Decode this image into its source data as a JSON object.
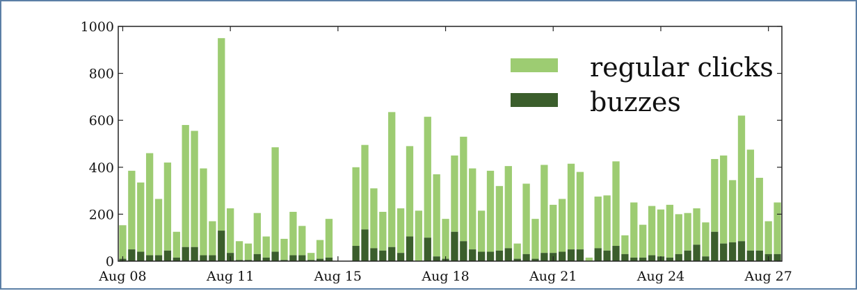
{
  "chart_data": {
    "type": "bar",
    "stacked": true,
    "title": "",
    "xlabel": "",
    "ylabel": "",
    "ylim": [
      0,
      1000
    ],
    "yticks": [
      0,
      200,
      400,
      600,
      800,
      1000
    ],
    "xtick_labels": [
      {
        "label": "Aug 08",
        "index": 0
      },
      {
        "label": "Aug 11",
        "index": 12
      },
      {
        "label": "Aug 15",
        "index": 24
      },
      {
        "label": "Aug 18",
        "index": 36
      },
      {
        "label": "Aug 21",
        "index": 48
      },
      {
        "label": "Aug 24",
        "index": 60
      },
      {
        "label": "Aug 27",
        "index": 72
      }
    ],
    "grid": false,
    "legend": "top-right",
    "series": [
      {
        "name": "regular clicks",
        "color": "#9dcc72",
        "values": [
          143,
          335,
          295,
          435,
          240,
          375,
          110,
          520,
          495,
          370,
          145,
          820,
          190,
          80,
          70,
          175,
          90,
          445,
          90,
          185,
          125,
          30,
          80,
          165,
          0,
          0,
          335,
          360,
          255,
          165,
          575,
          190,
          385,
          215,
          515,
          350,
          170,
          325,
          445,
          345,
          175,
          345,
          275,
          350,
          65,
          300,
          170,
          375,
          205,
          225,
          365,
          330,
          15,
          220,
          235,
          360,
          80,
          235,
          140,
          210,
          200,
          225,
          170,
          160,
          155,
          145,
          310,
          375,
          265,
          535,
          430,
          310,
          140,
          220
        ]
      },
      {
        "name": "buzzes",
        "color": "#3b5e2c",
        "values": [
          10,
          50,
          40,
          25,
          25,
          45,
          15,
          60,
          60,
          25,
          25,
          130,
          35,
          5,
          5,
          30,
          15,
          40,
          5,
          25,
          25,
          5,
          10,
          15,
          0,
          0,
          65,
          135,
          55,
          45,
          60,
          35,
          105,
          0,
          100,
          20,
          10,
          125,
          85,
          50,
          40,
          40,
          45,
          55,
          10,
          30,
          10,
          35,
          35,
          40,
          50,
          50,
          0,
          55,
          45,
          65,
          30,
          15,
          15,
          25,
          20,
          15,
          30,
          45,
          70,
          20,
          125,
          75,
          80,
          85,
          45,
          45,
          30,
          30
        ]
      }
    ]
  }
}
